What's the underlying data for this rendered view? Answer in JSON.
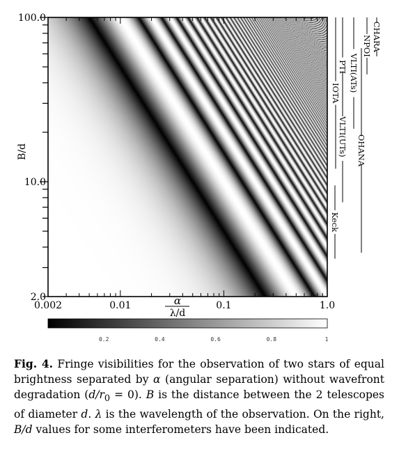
{
  "chart_data": {
    "type": "heatmap",
    "title": "",
    "xlabel": "α / λ/d",
    "xlabel_numerator": "α",
    "xlabel_denominator": "λ/d",
    "ylabel": "B/d",
    "x_scale": "log",
    "y_scale": "log",
    "xlim": [
      0.002,
      1.0
    ],
    "ylim": [
      2.0,
      100.0
    ],
    "x_ticklabels": [
      "0.002",
      "0.01",
      "0.1",
      "1.0"
    ],
    "x_ticks": [
      0.002,
      0.01,
      0.1,
      1.0
    ],
    "y_ticklabels": [
      "2.0",
      "10.0",
      "100.0"
    ],
    "y_ticks": [
      2.0,
      10.0,
      100.0
    ],
    "function": "fringe visibility |cos(pi * B/d * alpha/(lambda/d))|, black = 0, white = 1",
    "colorbar": {
      "range": [
        0,
        1
      ],
      "ticklabels": [
        "0.2",
        "0.4",
        "0.6",
        "0.8",
        "1"
      ],
      "ticks": [
        0.2,
        0.4,
        0.6,
        0.8,
        1.0
      ],
      "colors": [
        "#000000",
        "#ffffff"
      ]
    },
    "interferometers": [
      {
        "name": "CHARA",
        "from": 58,
        "to": 100
      },
      {
        "name": "NPOI",
        "from": 45,
        "to": 100
      },
      {
        "name": "VLTI(ATs)",
        "from": 21,
        "to": 100
      },
      {
        "name": "PTI",
        "from": 25,
        "to": 100
      },
      {
        "name": "IOTA",
        "from": 12,
        "to": 100
      },
      {
        "name": "VLTI(UTs)",
        "from": 7.5,
        "to": 47
      },
      {
        "name": "OHANA",
        "from": 3.7,
        "to": 65
      },
      {
        "name": "Keck",
        "from": 3.4,
        "to": 9.5
      }
    ]
  },
  "caption": {
    "label": "Fig. 4.",
    "text_1": " Fringe visibilities for the observation of two stars of equal brightness separated by ",
    "alpha": "α",
    "text_2": " (angular separation) without wavefront degradation (",
    "d_over_r0": "d/r",
    "r0_sub": "0",
    "text_3": " = 0). ",
    "B": "B",
    "text_4": " is the distance between the 2 telescopes of diameter ",
    "d": "d",
    "text_5": ". ",
    "lambda": "λ",
    "text_6": " is the wavelength of the observation. On the right, ",
    "B_over_d": "B/d",
    "text_7": " values for some interferometers have been indicated."
  }
}
